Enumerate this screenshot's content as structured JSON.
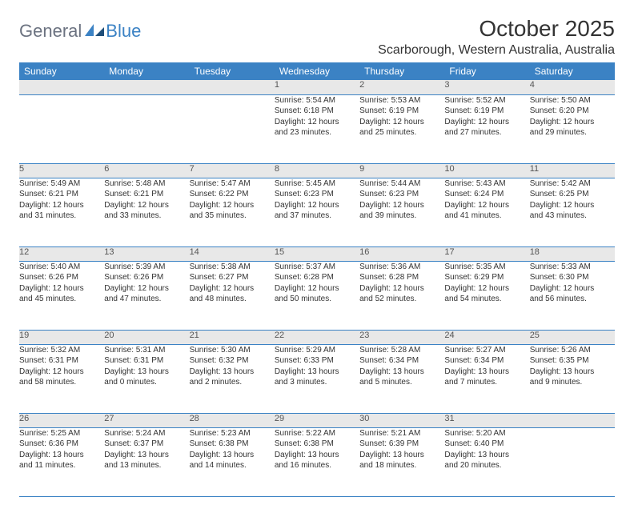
{
  "brand": {
    "text_general": "General",
    "text_blue": "Blue",
    "logo_fill": "#3b82c4"
  },
  "header": {
    "month_title": "October 2025",
    "location": "Scarborough, Western Australia, Australia"
  },
  "style": {
    "header_bg": "#3b82c4",
    "header_fg": "#ffffff",
    "daynum_bg": "#e8e8e8",
    "rule_color": "#3b82c4"
  },
  "weekdays": [
    "Sunday",
    "Monday",
    "Tuesday",
    "Wednesday",
    "Thursday",
    "Friday",
    "Saturday"
  ],
  "weeks": [
    {
      "nums": [
        "",
        "",
        "",
        "1",
        "2",
        "3",
        "4"
      ],
      "data": [
        null,
        null,
        null,
        {
          "sunrise": "Sunrise: 5:54 AM",
          "sunset": "Sunset: 6:18 PM",
          "day1": "Daylight: 12 hours",
          "day2": "and 23 minutes."
        },
        {
          "sunrise": "Sunrise: 5:53 AM",
          "sunset": "Sunset: 6:19 PM",
          "day1": "Daylight: 12 hours",
          "day2": "and 25 minutes."
        },
        {
          "sunrise": "Sunrise: 5:52 AM",
          "sunset": "Sunset: 6:19 PM",
          "day1": "Daylight: 12 hours",
          "day2": "and 27 minutes."
        },
        {
          "sunrise": "Sunrise: 5:50 AM",
          "sunset": "Sunset: 6:20 PM",
          "day1": "Daylight: 12 hours",
          "day2": "and 29 minutes."
        }
      ]
    },
    {
      "nums": [
        "5",
        "6",
        "7",
        "8",
        "9",
        "10",
        "11"
      ],
      "data": [
        {
          "sunrise": "Sunrise: 5:49 AM",
          "sunset": "Sunset: 6:21 PM",
          "day1": "Daylight: 12 hours",
          "day2": "and 31 minutes."
        },
        {
          "sunrise": "Sunrise: 5:48 AM",
          "sunset": "Sunset: 6:21 PM",
          "day1": "Daylight: 12 hours",
          "day2": "and 33 minutes."
        },
        {
          "sunrise": "Sunrise: 5:47 AM",
          "sunset": "Sunset: 6:22 PM",
          "day1": "Daylight: 12 hours",
          "day2": "and 35 minutes."
        },
        {
          "sunrise": "Sunrise: 5:45 AM",
          "sunset": "Sunset: 6:23 PM",
          "day1": "Daylight: 12 hours",
          "day2": "and 37 minutes."
        },
        {
          "sunrise": "Sunrise: 5:44 AM",
          "sunset": "Sunset: 6:23 PM",
          "day1": "Daylight: 12 hours",
          "day2": "and 39 minutes."
        },
        {
          "sunrise": "Sunrise: 5:43 AM",
          "sunset": "Sunset: 6:24 PM",
          "day1": "Daylight: 12 hours",
          "day2": "and 41 minutes."
        },
        {
          "sunrise": "Sunrise: 5:42 AM",
          "sunset": "Sunset: 6:25 PM",
          "day1": "Daylight: 12 hours",
          "day2": "and 43 minutes."
        }
      ]
    },
    {
      "nums": [
        "12",
        "13",
        "14",
        "15",
        "16",
        "17",
        "18"
      ],
      "data": [
        {
          "sunrise": "Sunrise: 5:40 AM",
          "sunset": "Sunset: 6:26 PM",
          "day1": "Daylight: 12 hours",
          "day2": "and 45 minutes."
        },
        {
          "sunrise": "Sunrise: 5:39 AM",
          "sunset": "Sunset: 6:26 PM",
          "day1": "Daylight: 12 hours",
          "day2": "and 47 minutes."
        },
        {
          "sunrise": "Sunrise: 5:38 AM",
          "sunset": "Sunset: 6:27 PM",
          "day1": "Daylight: 12 hours",
          "day2": "and 48 minutes."
        },
        {
          "sunrise": "Sunrise: 5:37 AM",
          "sunset": "Sunset: 6:28 PM",
          "day1": "Daylight: 12 hours",
          "day2": "and 50 minutes."
        },
        {
          "sunrise": "Sunrise: 5:36 AM",
          "sunset": "Sunset: 6:28 PM",
          "day1": "Daylight: 12 hours",
          "day2": "and 52 minutes."
        },
        {
          "sunrise": "Sunrise: 5:35 AM",
          "sunset": "Sunset: 6:29 PM",
          "day1": "Daylight: 12 hours",
          "day2": "and 54 minutes."
        },
        {
          "sunrise": "Sunrise: 5:33 AM",
          "sunset": "Sunset: 6:30 PM",
          "day1": "Daylight: 12 hours",
          "day2": "and 56 minutes."
        }
      ]
    },
    {
      "nums": [
        "19",
        "20",
        "21",
        "22",
        "23",
        "24",
        "25"
      ],
      "data": [
        {
          "sunrise": "Sunrise: 5:32 AM",
          "sunset": "Sunset: 6:31 PM",
          "day1": "Daylight: 12 hours",
          "day2": "and 58 minutes."
        },
        {
          "sunrise": "Sunrise: 5:31 AM",
          "sunset": "Sunset: 6:31 PM",
          "day1": "Daylight: 13 hours",
          "day2": "and 0 minutes."
        },
        {
          "sunrise": "Sunrise: 5:30 AM",
          "sunset": "Sunset: 6:32 PM",
          "day1": "Daylight: 13 hours",
          "day2": "and 2 minutes."
        },
        {
          "sunrise": "Sunrise: 5:29 AM",
          "sunset": "Sunset: 6:33 PM",
          "day1": "Daylight: 13 hours",
          "day2": "and 3 minutes."
        },
        {
          "sunrise": "Sunrise: 5:28 AM",
          "sunset": "Sunset: 6:34 PM",
          "day1": "Daylight: 13 hours",
          "day2": "and 5 minutes."
        },
        {
          "sunrise": "Sunrise: 5:27 AM",
          "sunset": "Sunset: 6:34 PM",
          "day1": "Daylight: 13 hours",
          "day2": "and 7 minutes."
        },
        {
          "sunrise": "Sunrise: 5:26 AM",
          "sunset": "Sunset: 6:35 PM",
          "day1": "Daylight: 13 hours",
          "day2": "and 9 minutes."
        }
      ]
    },
    {
      "nums": [
        "26",
        "27",
        "28",
        "29",
        "30",
        "31",
        ""
      ],
      "data": [
        {
          "sunrise": "Sunrise: 5:25 AM",
          "sunset": "Sunset: 6:36 PM",
          "day1": "Daylight: 13 hours",
          "day2": "and 11 minutes."
        },
        {
          "sunrise": "Sunrise: 5:24 AM",
          "sunset": "Sunset: 6:37 PM",
          "day1": "Daylight: 13 hours",
          "day2": "and 13 minutes."
        },
        {
          "sunrise": "Sunrise: 5:23 AM",
          "sunset": "Sunset: 6:38 PM",
          "day1": "Daylight: 13 hours",
          "day2": "and 14 minutes."
        },
        {
          "sunrise": "Sunrise: 5:22 AM",
          "sunset": "Sunset: 6:38 PM",
          "day1": "Daylight: 13 hours",
          "day2": "and 16 minutes."
        },
        {
          "sunrise": "Sunrise: 5:21 AM",
          "sunset": "Sunset: 6:39 PM",
          "day1": "Daylight: 13 hours",
          "day2": "and 18 minutes."
        },
        {
          "sunrise": "Sunrise: 5:20 AM",
          "sunset": "Sunset: 6:40 PM",
          "day1": "Daylight: 13 hours",
          "day2": "and 20 minutes."
        },
        null
      ]
    }
  ]
}
